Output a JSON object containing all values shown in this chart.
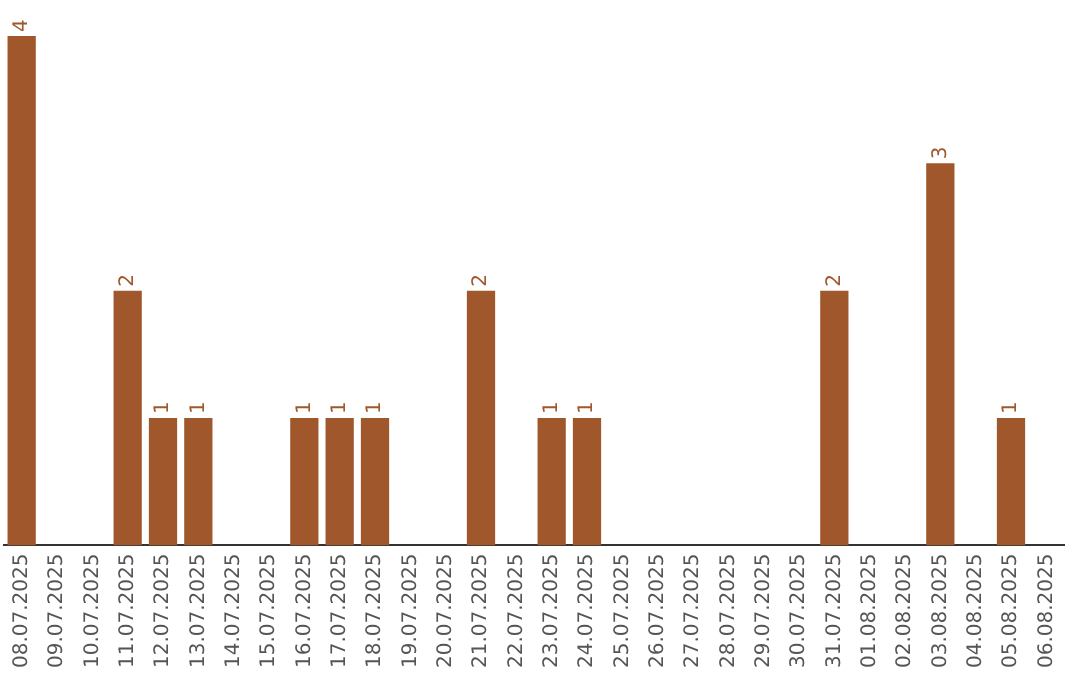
{
  "chart_data": {
    "type": "bar",
    "color": "#a0572b",
    "categories": [
      "08.07.2025",
      "09.07.2025",
      "10.07.2025",
      "11.07.2025",
      "12.07.2025",
      "13.07.2025",
      "14.07.2025",
      "15.07.2025",
      "16.07.2025",
      "17.07.2025",
      "18.07.2025",
      "19.07.2025",
      "20.07.2025",
      "21.07.2025",
      "22.07.2025",
      "23.07.2025",
      "24.07.2025",
      "25.07.2025",
      "26.07.2025",
      "27.07.2025",
      "28.07.2025",
      "29.07.2025",
      "30.07.2025",
      "31.07.2025",
      "01.08.2025",
      "02.08.2025",
      "03.08.2025",
      "04.08.2025",
      "05.08.2025",
      "06.08.2025"
    ],
    "values": [
      4,
      0,
      0,
      2,
      1,
      1,
      0,
      0,
      1,
      1,
      1,
      0,
      0,
      2,
      0,
      1,
      1,
      0,
      0,
      0,
      0,
      0,
      0,
      2,
      0,
      0,
      3,
      0,
      1,
      0
    ],
    "value_labels": [
      "4",
      null,
      null,
      "2",
      "1",
      "1",
      null,
      null,
      "1",
      "1",
      "1",
      null,
      null,
      "2",
      null,
      "1",
      "1",
      null,
      null,
      null,
      null,
      null,
      null,
      "2",
      null,
      null,
      "3",
      null,
      "1",
      null
    ],
    "grid": false,
    "legend": false
  }
}
